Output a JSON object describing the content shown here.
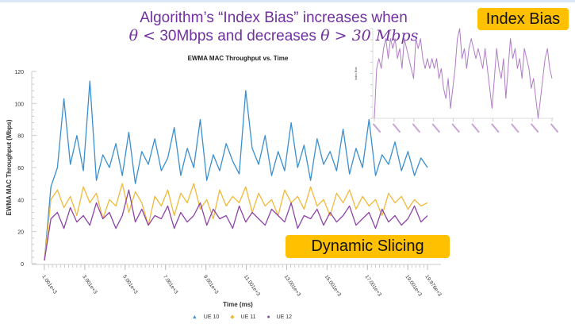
{
  "slide": {
    "headline_line1": "Algorithm’s “Index Bias” increases when",
    "headline_line2_a": "θ <",
    "headline_line2_b": " 30Mbps and decreases ",
    "headline_line2_c": "θ > 30 Mbps",
    "callout_index_bias": "Index Bias",
    "callout_dynamic_slicing": "Dynamic Slicing",
    "callout_color": "#FFC000",
    "headline_color": "#7030A0"
  },
  "chart_data": [
    {
      "type": "line",
      "title": "EWMA MAC Throughput vs. Time",
      "xlabel": "Time (ms)",
      "ylabel": "EWMA MAC Throughput (Mbps)",
      "ylim": [
        0,
        120
      ],
      "yticks": [
        "0",
        "20",
        "40",
        "60",
        "80",
        "100",
        "120"
      ],
      "xticks": [
        "1.001e+3",
        "3.001e+3",
        "5.001e+3",
        "7.001e+3",
        "9.001e+3",
        "11.001e+3",
        "13.001e+3",
        "15.001e+3",
        "17.001e+3",
        "19.001e+3",
        "19.976e+3"
      ],
      "xtick_values": [
        1001,
        3001,
        5001,
        7001,
        9001,
        11001,
        13001,
        15001,
        17001,
        19001,
        19976
      ],
      "xlim": [
        1001,
        19976
      ],
      "grid": false,
      "legend_position": "bottom",
      "x": [
        1001,
        1323,
        1644,
        1966,
        2287,
        2609,
        2931,
        3252,
        3574,
        3895,
        4217,
        4539,
        4860,
        5182,
        5503,
        5825,
        6147,
        6468,
        6790,
        7111,
        7433,
        7755,
        8076,
        8398,
        8719,
        9041,
        9363,
        9684,
        10006,
        10327,
        10649,
        10971,
        11292,
        11614,
        11935,
        12257,
        12579,
        12900,
        13222,
        13543,
        13865,
        14187,
        14508,
        14830,
        15151,
        15473,
        15795,
        16116,
        16438,
        16759,
        17081,
        17403,
        17724,
        18046,
        18367,
        18689,
        19011,
        19332,
        19654,
        19976
      ],
      "series": [
        {
          "name": "UE 10",
          "color": "#3a8fd0",
          "marker": "triangle",
          "values": [
            2,
            48,
            60,
            103,
            62,
            80,
            58,
            114,
            52,
            68,
            60,
            75,
            55,
            82,
            50,
            70,
            62,
            78,
            58,
            66,
            85,
            55,
            72,
            60,
            90,
            52,
            68,
            58,
            75,
            64,
            56,
            108,
            72,
            62,
            80,
            55,
            70,
            58,
            88,
            60,
            74,
            52,
            78,
            62,
            70,
            58,
            84,
            56,
            72,
            60,
            90,
            55,
            68,
            62,
            76,
            58,
            70,
            55,
            66,
            60
          ]
        },
        {
          "name": "UE 11",
          "color": "#f0b93a",
          "marker": "diamond",
          "values": [
            2,
            40,
            46,
            35,
            42,
            30,
            48,
            38,
            44,
            28,
            40,
            36,
            50,
            32,
            45,
            38,
            24,
            42,
            36,
            46,
            30,
            44,
            38,
            50,
            34,
            40,
            28,
            46,
            36,
            42,
            38,
            48,
            32,
            44,
            36,
            40,
            30,
            46,
            38,
            42,
            34,
            48,
            36,
            40,
            30,
            44,
            38,
            46,
            34,
            42,
            36,
            40,
            30,
            44,
            38,
            42,
            34,
            40,
            36,
            38
          ]
        },
        {
          "name": "UE 12",
          "color": "#8e44a8",
          "marker": "circle",
          "values": [
            2,
            28,
            32,
            22,
            35,
            26,
            30,
            24,
            38,
            28,
            32,
            22,
            30,
            46,
            26,
            34,
            24,
            30,
            28,
            36,
            22,
            32,
            26,
            30,
            38,
            24,
            34,
            28,
            30,
            22,
            36,
            26,
            32,
            28,
            24,
            34,
            30,
            26,
            38,
            22,
            30,
            28,
            34,
            24,
            32,
            26,
            30,
            36,
            24,
            28,
            32,
            22,
            34,
            26,
            30,
            24,
            28,
            36,
            26,
            30
          ]
        }
      ]
    },
    {
      "type": "line",
      "ylabel": "Index Bias",
      "grid": false,
      "series": [
        {
          "color": "#b07cc6",
          "values": [
            0,
            5,
            6,
            5,
            7,
            8,
            6,
            8,
            7,
            8,
            6,
            7,
            5,
            8,
            7,
            6,
            5,
            4,
            8,
            7,
            8,
            6,
            5,
            6,
            5,
            6,
            5,
            6,
            4,
            5,
            3,
            2,
            4,
            1,
            3,
            5,
            8,
            9,
            6,
            7,
            5,
            7,
            8,
            7,
            6,
            7,
            6,
            5,
            7,
            5,
            3,
            1,
            4,
            7,
            5,
            4,
            6,
            2,
            5,
            8,
            6,
            7,
            5,
            6,
            4,
            7,
            6,
            5,
            3,
            4,
            2,
            0,
            2,
            4,
            6,
            7,
            5,
            4
          ]
        }
      ]
    }
  ]
}
